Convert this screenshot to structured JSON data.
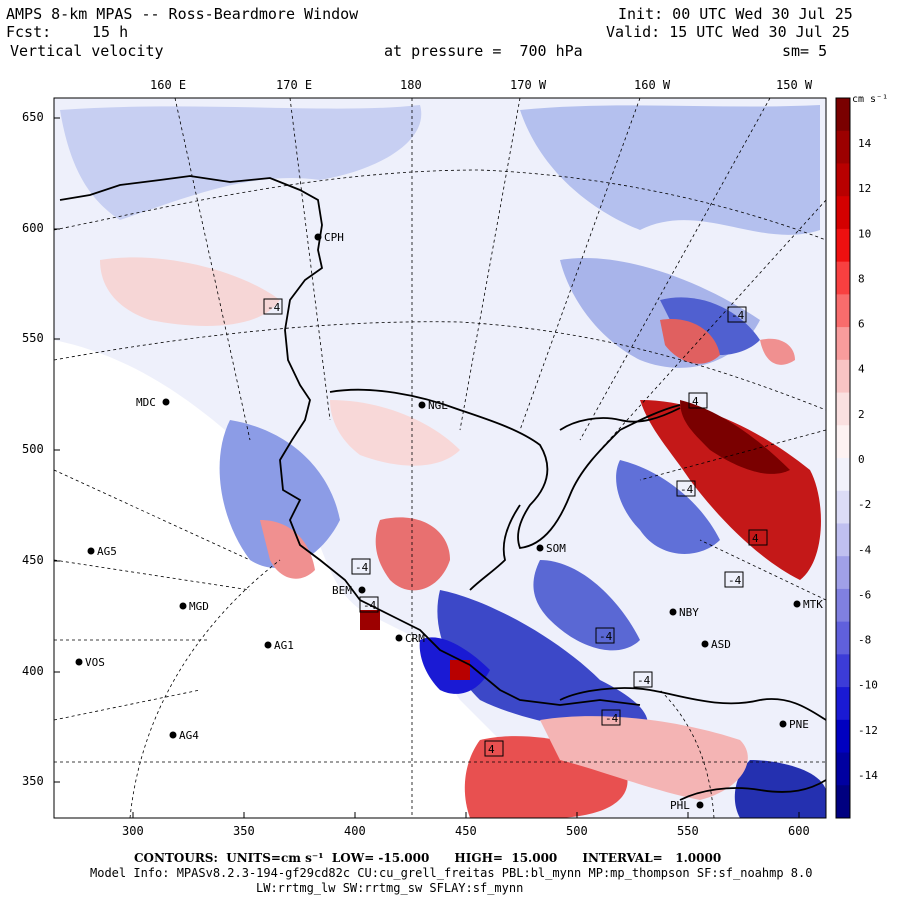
{
  "header": {
    "model_title": "AMPS 8-km MPAS -- Ross-Beardmore Window",
    "init": "Init: 00 UTC Wed 30 Jul 25",
    "forecast_label": "Fcst:",
    "forecast_hours": "15 h",
    "valid": "Valid: 15 UTC Wed 30 Jul 25",
    "field": "Vertical velocity",
    "pressure": "at pressure =  700 hPa",
    "smoothing": "sm= 5"
  },
  "axes": {
    "top_lon_labels": [
      "160 E",
      "170 E",
      "180",
      "170 W",
      "160 W",
      "150 W"
    ],
    "x_ticks": [
      "300",
      "350",
      "400",
      "450",
      "500",
      "550",
      "600"
    ],
    "y_ticks": [
      "650",
      "600",
      "550",
      "500",
      "450",
      "400",
      "350"
    ]
  },
  "colorbar": {
    "units": "cm s⁻¹",
    "labels": [
      "14",
      "12",
      "10",
      "8",
      "6",
      "4",
      "2",
      "0",
      "-2",
      "-4",
      "-6",
      "-8",
      "-10",
      "-12",
      "-14"
    ],
    "colors": [
      "#7a0000",
      "#9c0000",
      "#b80000",
      "#d40000",
      "#ee1010",
      "#f84040",
      "#f86c6c",
      "#f89c9c",
      "#f8c4c4",
      "#fae0e0",
      "#fdf2f2",
      "#f2f2fb",
      "#dcdcf6",
      "#c0c0f0",
      "#a0a0e8",
      "#8080e0",
      "#6060dc",
      "#3c3cd8",
      "#1a1ad4",
      "#0000c0",
      "#0000a0",
      "#000080"
    ]
  },
  "stations": [
    {
      "name": "CPH"
    },
    {
      "name": "MDC"
    },
    {
      "name": "NGL"
    },
    {
      "name": "SOM"
    },
    {
      "name": "AG5"
    },
    {
      "name": "MGD"
    },
    {
      "name": "VOS"
    },
    {
      "name": "AG1"
    },
    {
      "name": "AG4"
    },
    {
      "name": "BEM"
    },
    {
      "name": "CRM"
    },
    {
      "name": "NBY"
    },
    {
      "name": "MTK"
    },
    {
      "name": "ASD"
    },
    {
      "name": "PNE"
    },
    {
      "name": "PHL"
    }
  ],
  "contour_labels": [
    "-4",
    "-4",
    "-4",
    "-4",
    "4",
    "-4",
    "-4",
    "-4",
    "-4",
    "4",
    "-4",
    "4"
  ],
  "footer": {
    "contours_line": "CONTOURS:  UNITS=cm s⁻¹  LOW= -15.000      HIGH=  15.000      INTERVAL=   1.0000",
    "model_info": "Model Info: MPASv8.2.3-194-gf29cd82c CU:cu_grell_freitas PBL:bl_mynn MP:mp_thompson SF:sf_noahmp 8.0",
    "model_info2": "LW:rrtmg_lw SW:rrtmg_sw SFLAY:sf_mynn"
  },
  "map_colors": {
    "ocean_base": "#eef0fb",
    "ice_blank": "#ffffff",
    "positive": "#f2a0a0",
    "negative": "#8c9ce6",
    "coast": "#000000"
  }
}
